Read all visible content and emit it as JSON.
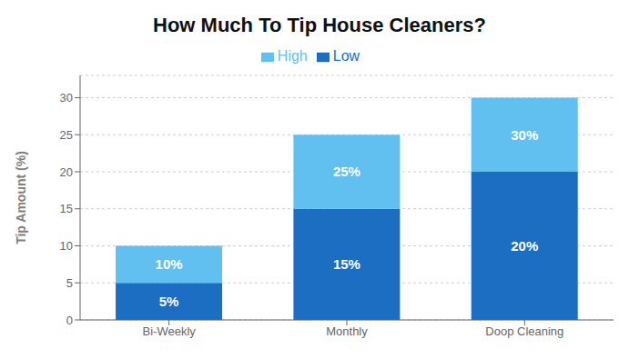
{
  "chart_data": {
    "type": "bar",
    "title": "How Much To Tip House Cleaners?",
    "ylabel": "Tip Amount (%)",
    "categories": [
      "Bi-Weekly",
      "Monthly",
      "Doop Cleaning"
    ],
    "series": [
      {
        "name": "Low",
        "color": "#1B6EC2",
        "values": [
          5,
          15,
          20
        ],
        "value_labels": [
          "5%",
          "15%",
          "20%"
        ]
      },
      {
        "name": "High",
        "color": "#62C0F0",
        "values": [
          5,
          10,
          10
        ]
      }
    ],
    "stacked": true,
    "totals": [
      10,
      25,
      30
    ],
    "total_labels": [
      "10%",
      "25%",
      "30%"
    ],
    "data_labels": true,
    "ylim": [
      0,
      33
    ],
    "yticks": [
      0,
      5,
      10,
      15,
      20,
      25,
      30
    ],
    "grid": true,
    "legend": "top"
  }
}
